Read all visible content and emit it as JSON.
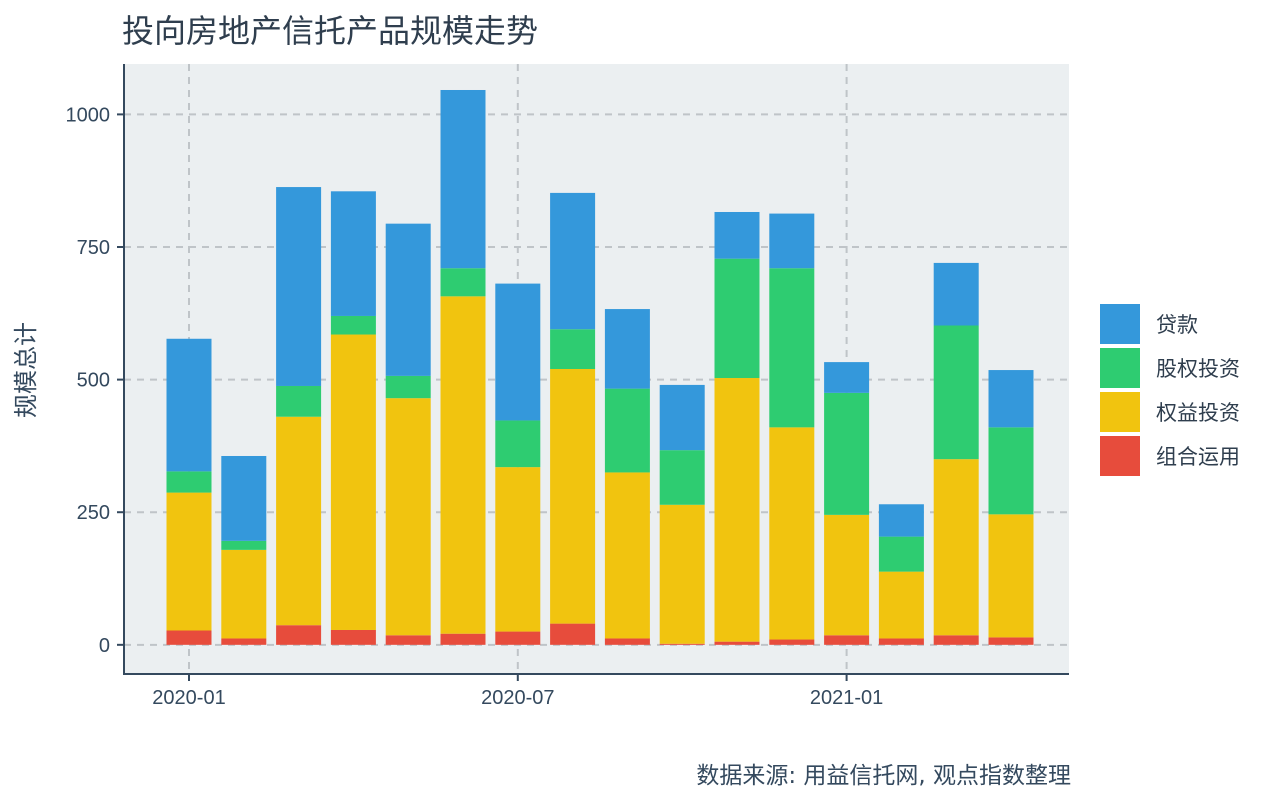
{
  "chart_data": {
    "type": "bar",
    "stacked": true,
    "title": "投向房地产信托产品规模走势",
    "xlabel": "",
    "ylabel": "规模总计",
    "caption": "数据来源: 用益信托网, 观点指数整理",
    "categories": [
      "2020-01",
      "2020-02",
      "2020-03",
      "2020-04",
      "2020-05",
      "2020-06",
      "2020-07",
      "2020-08",
      "2020-09",
      "2020-10",
      "2020-11",
      "2020-12",
      "2021-01",
      "2021-02",
      "2021-03",
      "2021-04"
    ],
    "x_tick_labels": [
      "2020-01",
      "2020-07",
      "2021-01"
    ],
    "x_tick_categories": [
      "2020-01",
      "2020-07",
      "2021-01"
    ],
    "ylim": [
      -55,
      1095
    ],
    "y_ticks": [
      0,
      250,
      500,
      750,
      1000
    ],
    "grid": true,
    "legend_position": "right",
    "series": [
      {
        "name": "组合运用",
        "color": "#e74c3c",
        "values": [
          27,
          12,
          37,
          28,
          18,
          21,
          25,
          40,
          12,
          2,
          6,
          10,
          18,
          12,
          18,
          14
        ]
      },
      {
        "name": "权益投资",
        "color": "#f1c40f",
        "values": [
          260,
          167,
          393,
          557,
          447,
          636,
          310,
          480,
          313,
          262,
          497,
          400,
          227,
          126,
          332,
          232
        ]
      },
      {
        "name": "股权投资",
        "color": "#2ecc71",
        "values": [
          40,
          17,
          58,
          35,
          42,
          53,
          88,
          75,
          158,
          103,
          225,
          300,
          230,
          66,
          252,
          164
        ]
      },
      {
        "name": "贷款",
        "color": "#3498db",
        "values": [
          250,
          160,
          375,
          235,
          287,
          336,
          258,
          257,
          150,
          123,
          88,
          103,
          58,
          61,
          118,
          108
        ]
      }
    ]
  },
  "legend_order": [
    "贷款",
    "股权投资",
    "权益投资",
    "组合运用"
  ]
}
